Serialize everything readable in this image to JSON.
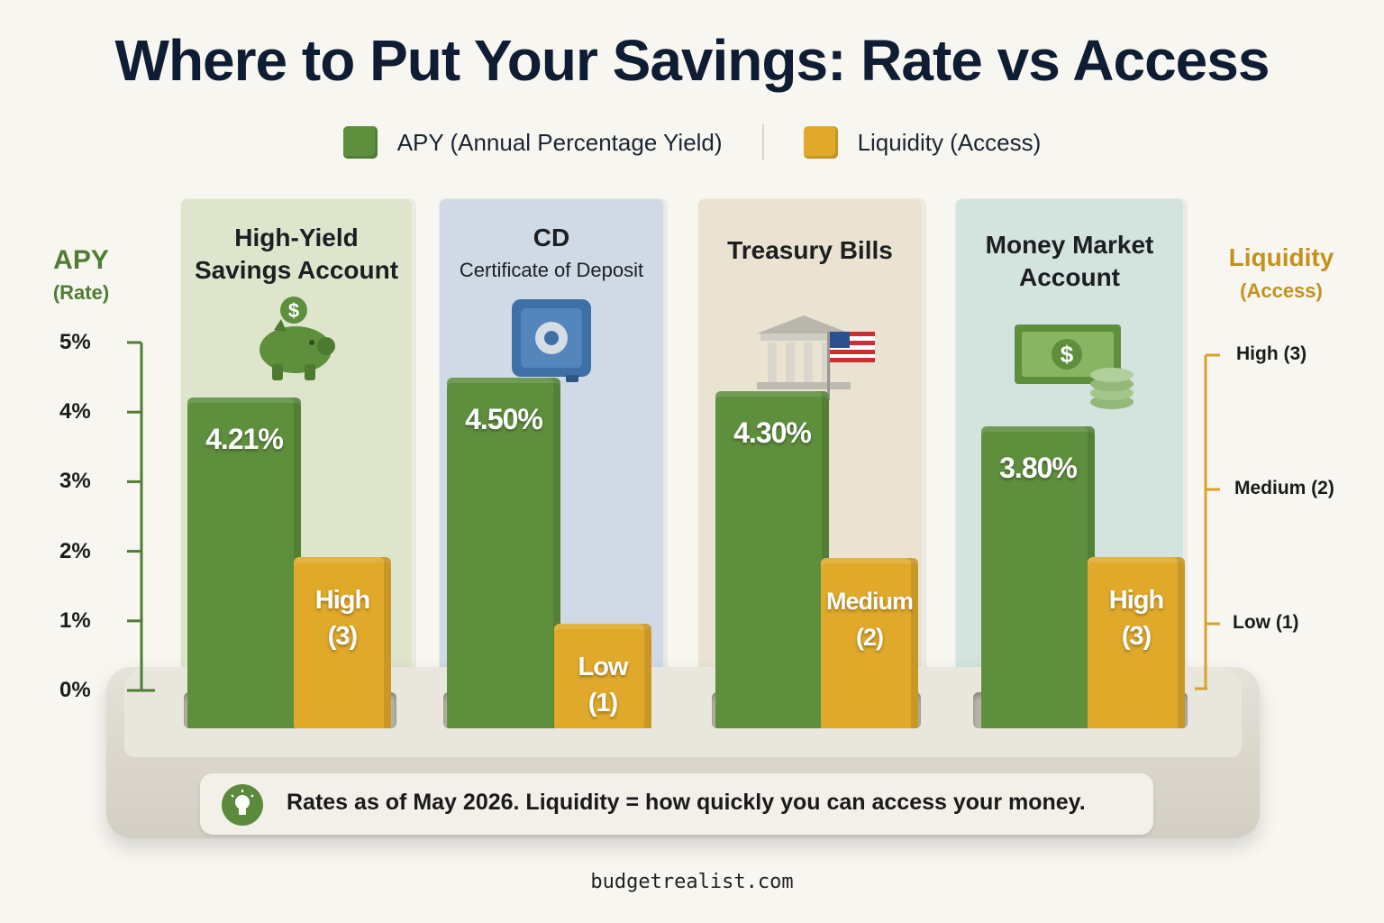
{
  "title": "Where to Put Your Savings: Rate vs Access",
  "legend": {
    "apy_label": "APY (Annual Percentage Yield)",
    "liquidity_label": "Liquidity (Access)"
  },
  "axes": {
    "left_title": "APY",
    "left_subtitle": "(Rate)",
    "right_title": "Liquidity",
    "right_subtitle": "(Access)",
    "left_ticks": [
      "0%",
      "1%",
      "2%",
      "3%",
      "4%",
      "5%"
    ],
    "right_ticks": [
      "Low (1)",
      "Medium (2)",
      "High (3)"
    ]
  },
  "panels": [
    {
      "title_line1": "High-Yield",
      "title_line2": "Savings Account",
      "subtitle": ""
    },
    {
      "title_line1": "CD",
      "title_line2": "",
      "subtitle": "Certificate of Deposit"
    },
    {
      "title_line1": "Treasury Bills",
      "title_line2": "",
      "subtitle": ""
    },
    {
      "title_line1": "Money Market",
      "title_line2": "Account",
      "subtitle": ""
    }
  ],
  "icons": [
    "piggy-bank-icon",
    "safe-icon",
    "government-building-flag-icon",
    "cash-coins-icon"
  ],
  "chart_data": {
    "type": "bar",
    "categories": [
      "High-Yield Savings Account",
      "CD",
      "Treasury Bills",
      "Money Market Account"
    ],
    "series": [
      {
        "name": "APY (Annual Percentage Yield)",
        "values": [
          4.21,
          4.5,
          4.3,
          3.8
        ],
        "labels": [
          "4.21%",
          "4.50%",
          "4.30%",
          "3.80%"
        ]
      },
      {
        "name": "Liquidity (Access)",
        "values": [
          3,
          1,
          2,
          3
        ],
        "labels": [
          [
            "High",
            "(3)"
          ],
          [
            "Low",
            "(1)"
          ],
          [
            "Medium",
            "(2)"
          ],
          [
            "High",
            "(3)"
          ]
        ]
      }
    ],
    "y_left": {
      "range": [
        0,
        5
      ],
      "unit": "%"
    },
    "y_right": {
      "range": [
        0,
        3.5
      ]
    }
  },
  "colors": {
    "apy": "#5e8f3d",
    "liquidity": "#e0a92a",
    "left_axis": "#4f7d34",
    "right_axis": "#d7a327",
    "panel_bg": [
      "#dfe5cd",
      "#cfdae6",
      "#ebe3d2",
      "#d3e3de"
    ]
  },
  "note": "Rates as of May 2026. Liquidity = how quickly you can access your money.",
  "footer": "budgetrealist.com"
}
